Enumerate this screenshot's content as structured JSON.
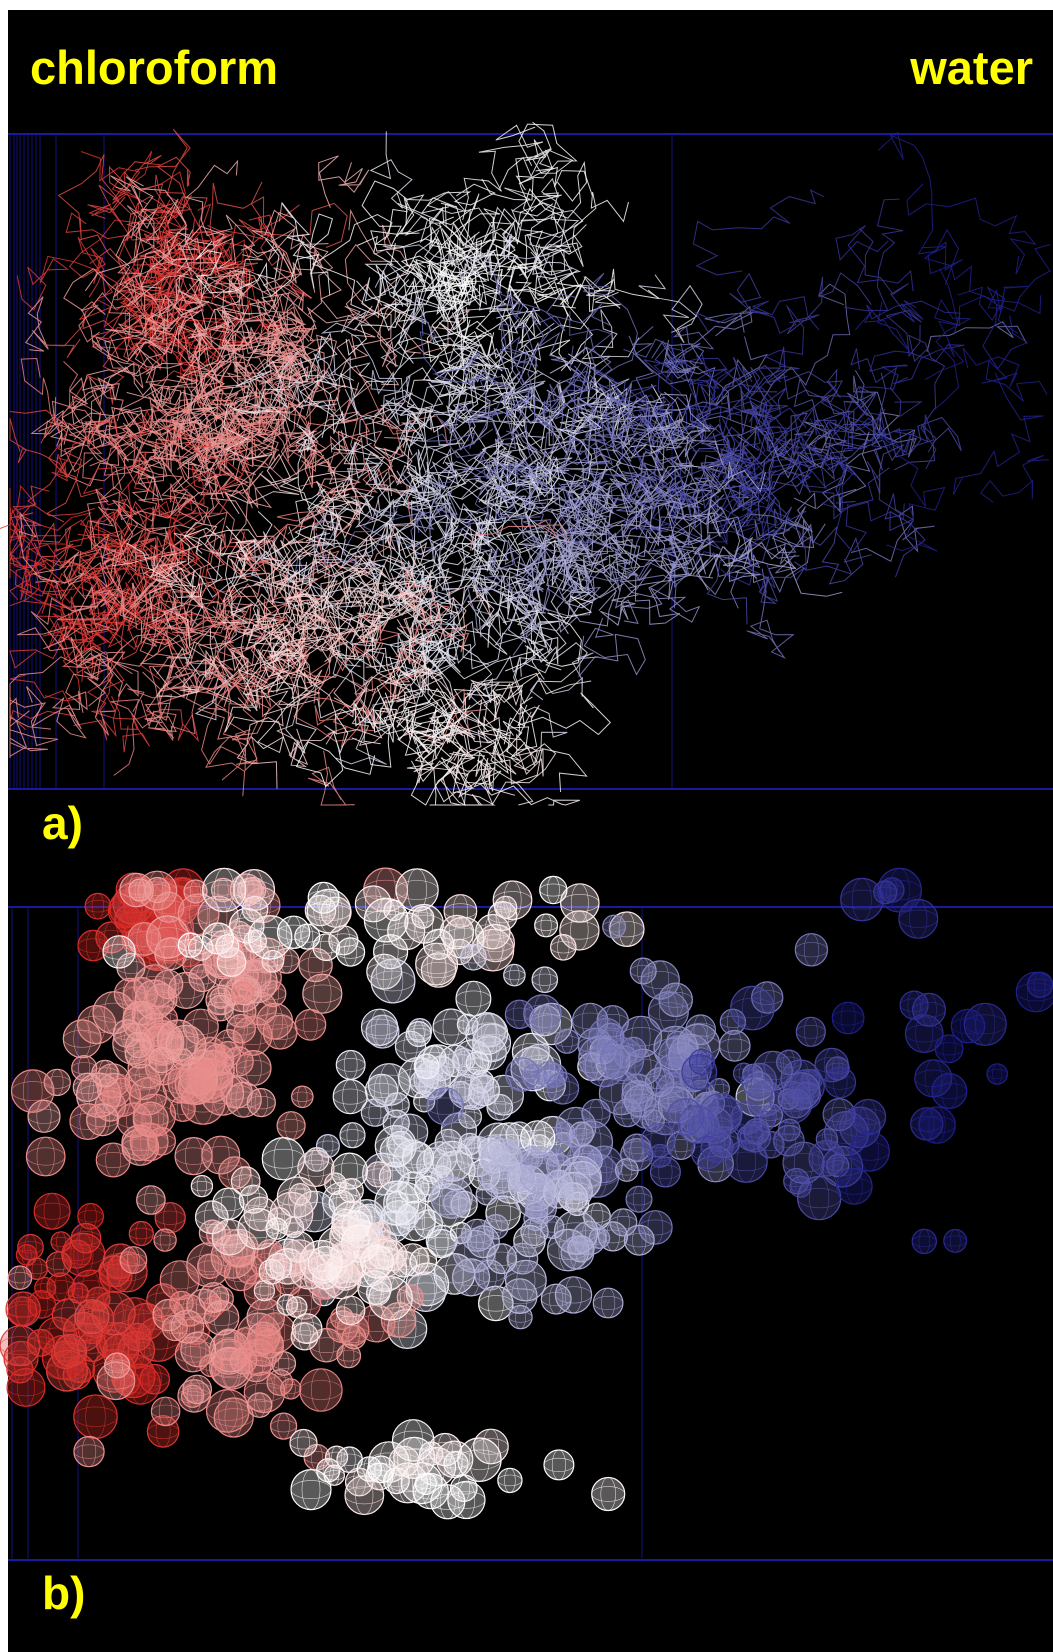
{
  "labels": {
    "left_solvent": "chloroform",
    "right_solvent": "water",
    "panel_a": "a)",
    "panel_b": "b)"
  },
  "colors": {
    "background": "#000000",
    "label": "#ffff00",
    "box": "#1a1aa0",
    "gradient_left": "#d41c18",
    "gradient_mid": "#ffffff",
    "gradient_right": "#1e1e8c"
  },
  "panels": [
    {
      "id": "a",
      "representation": "wireframe-lines"
    },
    {
      "id": "b",
      "representation": "mesh-spheres"
    }
  ]
}
